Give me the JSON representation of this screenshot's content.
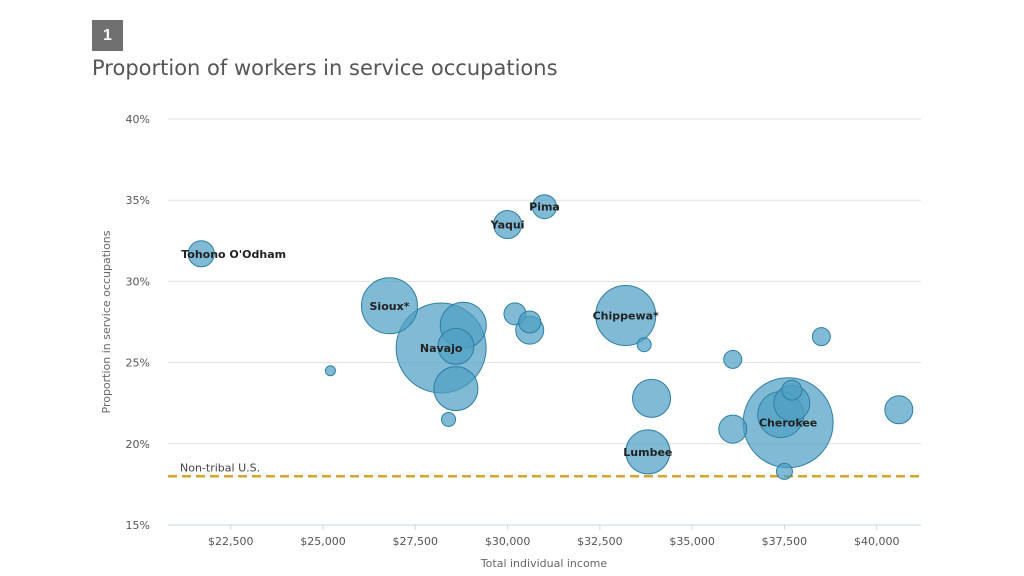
{
  "badge": "1",
  "chart_data": {
    "type": "scatter",
    "title": "Proportion of workers in service occupations",
    "xlabel": "Total individual income",
    "ylabel": "Proportion in service occupations",
    "xlim": [
      20800,
      41200
    ],
    "ylim": [
      15,
      40
    ],
    "x_ticks": [
      22500,
      25000,
      27500,
      30000,
      32500,
      35000,
      37500,
      40000
    ],
    "x_tick_labels": [
      "$22,500",
      "$25,000",
      "$27,500",
      "$30,000",
      "$32,500",
      "$35,000",
      "$37,500",
      "$40,000"
    ],
    "y_ticks": [
      15,
      20,
      25,
      30,
      35,
      40
    ],
    "y_tick_labels": [
      "15%",
      "20%",
      "25%",
      "30%",
      "35%",
      "40%"
    ],
    "grid": true,
    "bubble_color": "#4f9fc4",
    "bubble_stroke": "#2d7fa6",
    "reference_line": {
      "label": "Non-tribal U.S.",
      "y": 18,
      "color": "#d4a72c"
    },
    "points": [
      {
        "x": 21700,
        "y": 31.7,
        "size": 13,
        "label": "Tohono O'Odham"
      },
      {
        "x": 31000,
        "y": 34.6,
        "size": 12,
        "label": "Pima"
      },
      {
        "x": 30000,
        "y": 33.5,
        "size": 14,
        "label": "Yaqui"
      },
      {
        "x": 26800,
        "y": 28.5,
        "size": 28,
        "label": "Sioux*"
      },
      {
        "x": 33200,
        "y": 27.9,
        "size": 30,
        "label": "Chippewa*"
      },
      {
        "x": 28200,
        "y": 25.9,
        "size": 45,
        "label": "Navajo"
      },
      {
        "x": 37600,
        "y": 21.3,
        "size": 45,
        "label": "Cherokee"
      },
      {
        "x": 33800,
        "y": 19.5,
        "size": 22,
        "label": "Lumbee"
      },
      {
        "x": 28800,
        "y": 27.3,
        "size": 23,
        "label": ""
      },
      {
        "x": 28600,
        "y": 26.0,
        "size": 18,
        "label": ""
      },
      {
        "x": 28600,
        "y": 23.4,
        "size": 22,
        "label": ""
      },
      {
        "x": 25200,
        "y": 24.5,
        "size": 5,
        "label": ""
      },
      {
        "x": 28400,
        "y": 21.5,
        "size": 7,
        "label": ""
      },
      {
        "x": 30200,
        "y": 28.0,
        "size": 11,
        "label": ""
      },
      {
        "x": 30600,
        "y": 27.5,
        "size": 11,
        "label": ""
      },
      {
        "x": 30600,
        "y": 27.0,
        "size": 14,
        "label": ""
      },
      {
        "x": 33700,
        "y": 26.1,
        "size": 7,
        "label": ""
      },
      {
        "x": 33900,
        "y": 22.8,
        "size": 19,
        "label": ""
      },
      {
        "x": 36100,
        "y": 25.2,
        "size": 9,
        "label": ""
      },
      {
        "x": 38500,
        "y": 26.6,
        "size": 9,
        "label": ""
      },
      {
        "x": 36100,
        "y": 20.9,
        "size": 14,
        "label": ""
      },
      {
        "x": 37500,
        "y": 18.3,
        "size": 8,
        "label": ""
      },
      {
        "x": 37700,
        "y": 23.3,
        "size": 10,
        "label": ""
      },
      {
        "x": 37700,
        "y": 22.5,
        "size": 18,
        "label": ""
      },
      {
        "x": 37400,
        "y": 21.8,
        "size": 23,
        "label": ""
      },
      {
        "x": 40600,
        "y": 22.1,
        "size": 14,
        "label": ""
      }
    ]
  }
}
